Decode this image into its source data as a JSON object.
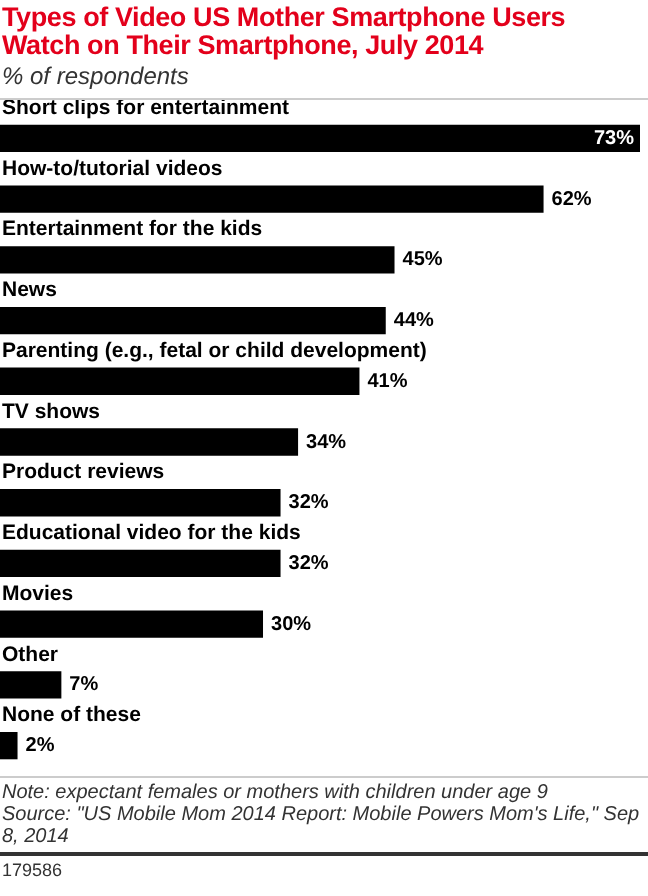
{
  "chart_data": {
    "type": "bar",
    "orientation": "horizontal",
    "title": "Types of Video US Mother Smartphone Users Watch on Their Smartphone, July 2014",
    "subtitle": "% of respondents",
    "categories": [
      "Short clips for entertainment",
      "How-to/tutorial videos",
      "Entertainment for the kids",
      "News",
      "Parenting (e.g., fetal or child development)",
      "TV shows",
      "Product reviews",
      "Educational video for the kids",
      "Movies",
      "Other",
      "None of these"
    ],
    "values": [
      73,
      62,
      45,
      44,
      41,
      34,
      32,
      32,
      30,
      7,
      2
    ],
    "value_labels": [
      "73%",
      "62%",
      "45%",
      "44%",
      "41%",
      "34%",
      "32%",
      "32%",
      "30%",
      "7%",
      "2%"
    ],
    "color": "#000000",
    "legend": false,
    "annotations": [
      "Note: expectant females or mothers with children under age 9",
      "Source: \"US Mobile Mom 2014 Report: Mobile Powers Mom's Life,\" Sep 8, 2014",
      "179586"
    ]
  }
}
